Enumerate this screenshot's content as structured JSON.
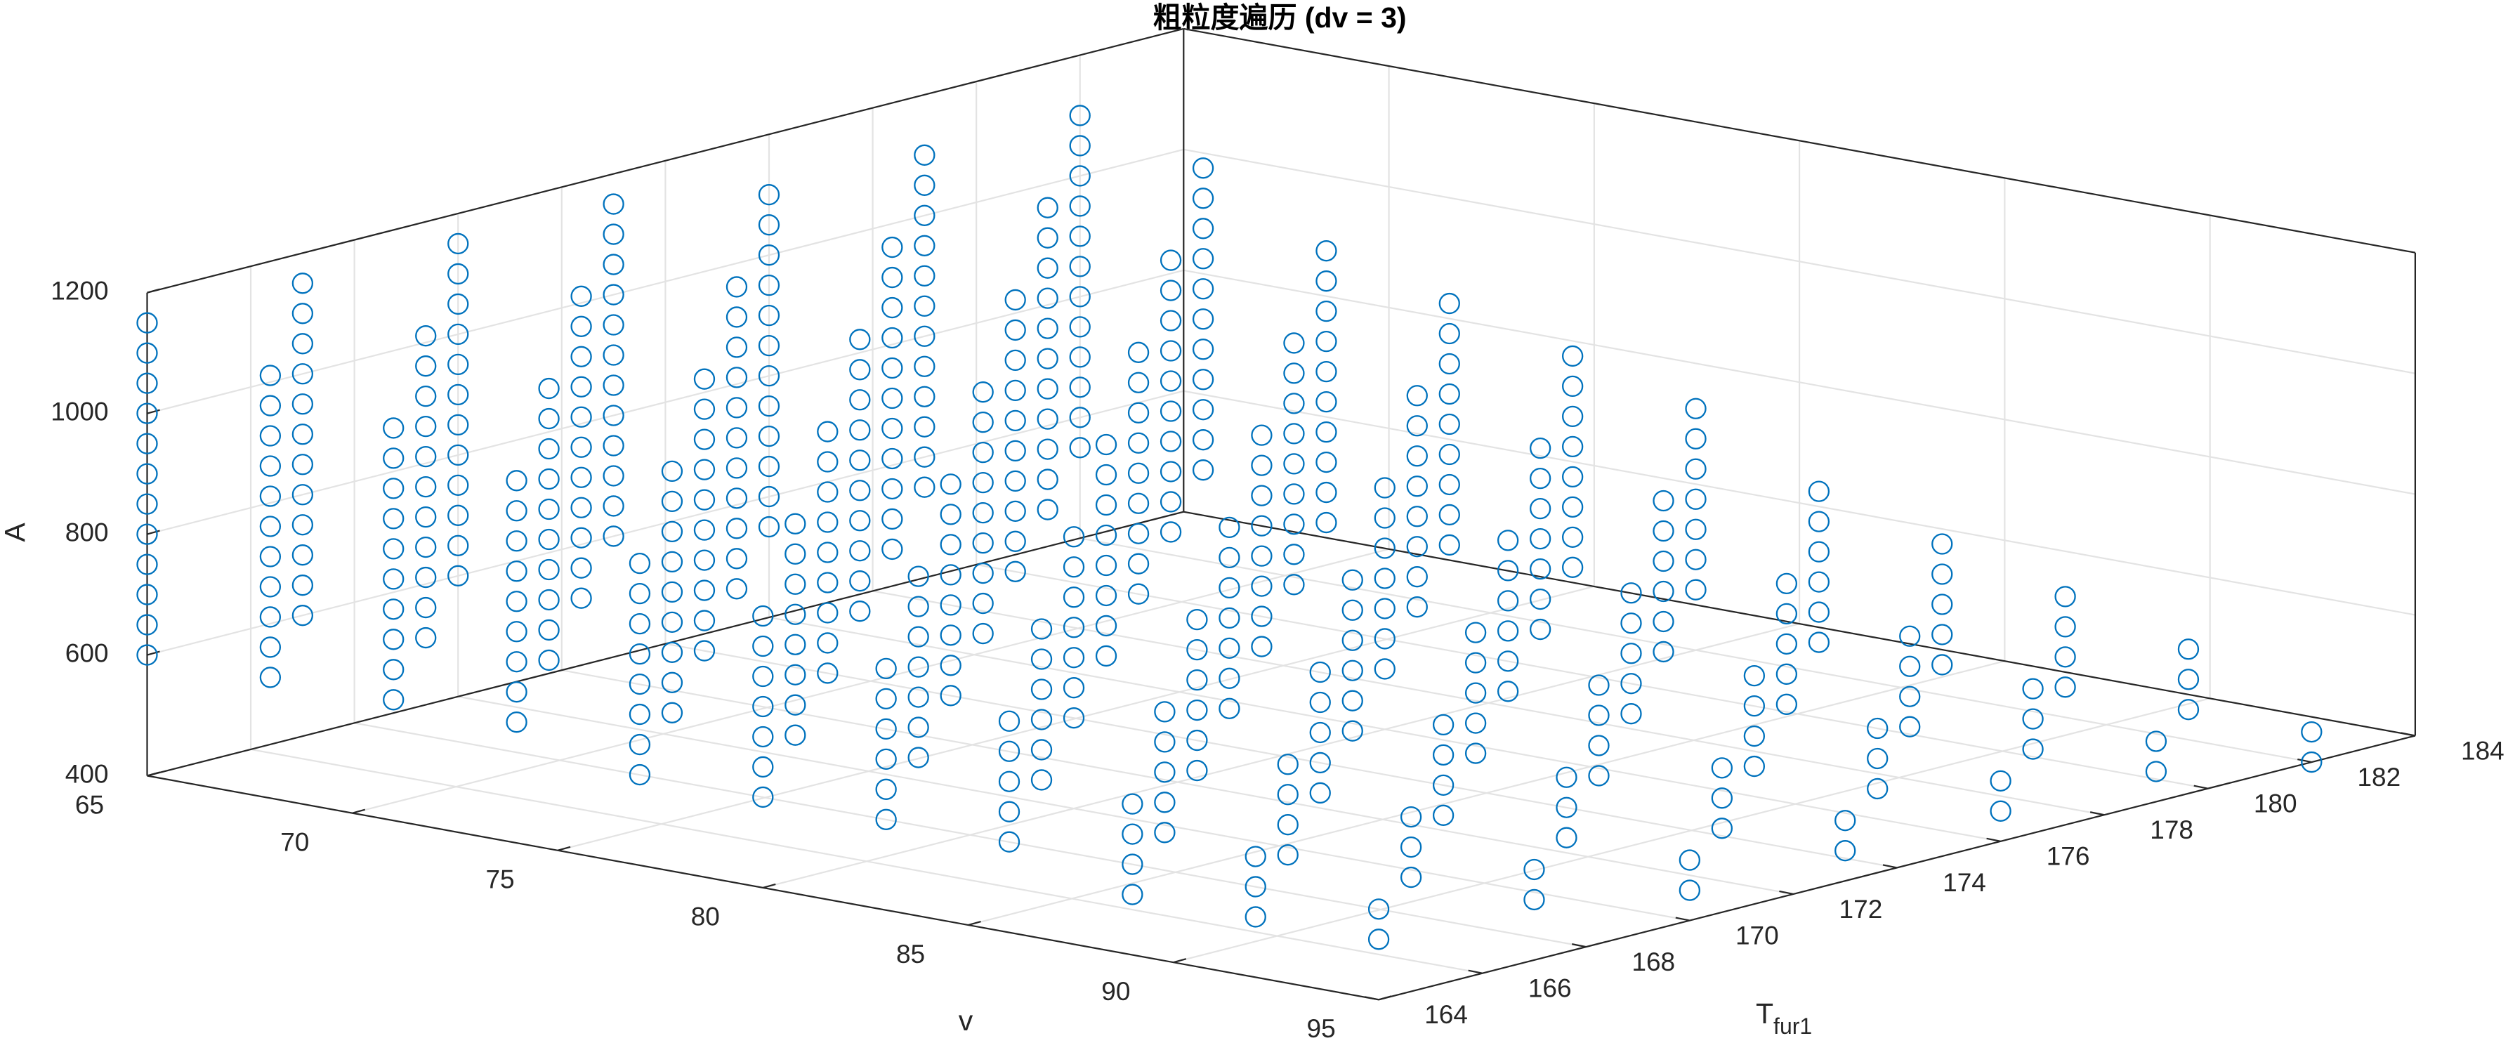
{
  "chart_data": {
    "type": "scatter3d",
    "title": "粗粒度遍历 (dv = 3)",
    "xlabel": "v",
    "ylabel": {
      "text": "T",
      "subscript": "fur1"
    },
    "zlabel": "A",
    "color": "#0072bd",
    "grid": true,
    "xlim": [
      65,
      95
    ],
    "ylim": [
      164,
      184
    ],
    "zlim": [
      400,
      1200
    ],
    "xticks": [
      65,
      70,
      75,
      80,
      85,
      90,
      95
    ],
    "yticks": [
      164,
      166,
      168,
      170,
      172,
      174,
      176,
      178,
      180,
      182,
      184
    ],
    "zticks": [
      400,
      600,
      800,
      1000,
      1200
    ],
    "columns": [
      {
        "x": 65,
        "y": 164,
        "z": [
          600,
          650,
          700,
          750,
          800,
          850,
          900,
          950,
          1000,
          1050,
          1100,
          1150
        ]
      },
      {
        "x": 65,
        "y": 167,
        "z": [
          600,
          650,
          700,
          750,
          800,
          850,
          900,
          950,
          1000,
          1050,
          1100,
          1150
        ]
      },
      {
        "x": 65,
        "y": 170,
        "z": [
          600,
          650,
          700,
          750,
          800,
          850,
          900,
          950,
          1000,
          1050,
          1100,
          1150
        ]
      },
      {
        "x": 65,
        "y": 173,
        "z": [
          600,
          650,
          700,
          750,
          800,
          850,
          900,
          950,
          1000,
          1050,
          1100,
          1150
        ]
      },
      {
        "x": 65,
        "y": 176,
        "z": [
          550,
          600,
          650,
          700,
          750,
          800,
          850,
          900,
          950,
          1000,
          1050,
          1100
        ]
      },
      {
        "x": 65,
        "y": 179,
        "z": [
          550,
          600,
          650,
          700,
          750,
          800,
          850,
          900,
          950,
          1000,
          1050,
          1100
        ]
      },
      {
        "x": 65,
        "y": 182,
        "z": [
          550,
          600,
          650,
          700,
          750,
          800,
          850,
          900,
          950,
          1000,
          1050,
          1100
        ]
      },
      {
        "x": 68,
        "y": 164,
        "z": [
          600,
          650,
          700,
          750,
          800,
          850,
          900,
          950,
          1000,
          1050,
          1100
        ]
      },
      {
        "x": 68,
        "y": 167,
        "z": [
          600,
          650,
          700,
          750,
          800,
          850,
          900,
          950,
          1000,
          1050,
          1100
        ]
      },
      {
        "x": 68,
        "y": 170,
        "z": [
          600,
          650,
          700,
          750,
          800,
          850,
          900,
          950,
          1000,
          1050,
          1100
        ]
      },
      {
        "x": 68,
        "y": 173,
        "z": [
          550,
          600,
          650,
          700,
          750,
          800,
          850,
          900,
          950,
          1000,
          1050
        ]
      },
      {
        "x": 68,
        "y": 176,
        "z": [
          550,
          600,
          650,
          700,
          750,
          800,
          850,
          900,
          950,
          1000,
          1050
        ]
      },
      {
        "x": 68,
        "y": 179,
        "z": [
          550,
          600,
          650,
          700,
          750,
          800,
          850,
          900,
          950,
          1000,
          1050
        ]
      },
      {
        "x": 68,
        "y": 182,
        "z": [
          550,
          600,
          650,
          700,
          750,
          800,
          850,
          900,
          950,
          1000,
          1050
        ]
      },
      {
        "x": 71,
        "y": 164,
        "z": [
          600,
          650,
          700,
          750,
          800,
          850,
          900,
          950,
          1000,
          1050
        ]
      },
      {
        "x": 71,
        "y": 167,
        "z": [
          600,
          650,
          700,
          750,
          800,
          850,
          900,
          950,
          1000,
          1050
        ]
      },
      {
        "x": 71,
        "y": 170,
        "z": [
          550,
          600,
          650,
          700,
          750,
          800,
          850,
          900,
          950,
          1000
        ]
      },
      {
        "x": 71,
        "y": 173,
        "z": [
          550,
          600,
          650,
          700,
          750,
          800,
          850,
          900,
          950,
          1000
        ]
      },
      {
        "x": 71,
        "y": 176,
        "z": [
          550,
          600,
          650,
          700,
          750,
          800,
          850,
          900,
          950,
          1000
        ]
      },
      {
        "x": 71,
        "y": 179,
        "z": [
          550,
          600,
          650,
          700,
          750,
          800,
          850,
          900,
          950,
          1000
        ]
      },
      {
        "x": 71,
        "y": 182,
        "z": [
          500,
          550,
          600,
          650,
          700,
          750,
          800,
          850,
          900,
          950
        ]
      },
      {
        "x": 74,
        "y": 164,
        "z": [
          600,
          650,
          700,
          750,
          800,
          850,
          900,
          950,
          1000
        ]
      },
      {
        "x": 74,
        "y": 167,
        "z": [
          550,
          600,
          650,
          700,
          750,
          800,
          850,
          900,
          950
        ]
      },
      {
        "x": 74,
        "y": 170,
        "z": [
          550,
          600,
          650,
          700,
          750,
          800,
          850,
          900,
          950
        ]
      },
      {
        "x": 74,
        "y": 173,
        "z": [
          550,
          600,
          650,
          700,
          750,
          800,
          850,
          900,
          950
        ]
      },
      {
        "x": 74,
        "y": 176,
        "z": [
          550,
          600,
          650,
          700,
          750,
          800,
          850,
          900,
          950
        ]
      },
      {
        "x": 74,
        "y": 179,
        "z": [
          500,
          550,
          600,
          650,
          700,
          750,
          800,
          850,
          900
        ]
      },
      {
        "x": 74,
        "y": 182,
        "z": [
          500,
          550,
          600,
          650,
          700,
          750,
          800,
          850,
          900
        ]
      },
      {
        "x": 77,
        "y": 164,
        "z": [
          550,
          600,
          650,
          700,
          750,
          800,
          850,
          900
        ]
      },
      {
        "x": 77,
        "y": 167,
        "z": [
          550,
          600,
          650,
          700,
          750,
          800,
          850,
          900
        ]
      },
      {
        "x": 77,
        "y": 170,
        "z": [
          550,
          600,
          650,
          700,
          750,
          800,
          850,
          900
        ]
      },
      {
        "x": 77,
        "y": 173,
        "z": [
          550,
          600,
          650,
          700,
          750,
          800,
          850,
          900
        ]
      },
      {
        "x": 77,
        "y": 176,
        "z": [
          500,
          550,
          600,
          650,
          700,
          750,
          800,
          850
        ]
      },
      {
        "x": 77,
        "y": 179,
        "z": [
          500,
          550,
          600,
          650,
          700,
          750,
          800,
          850
        ]
      },
      {
        "x": 77,
        "y": 182,
        "z": [
          500,
          550,
          600,
          650,
          700,
          750,
          800,
          850
        ]
      },
      {
        "x": 80,
        "y": 164,
        "z": [
          550,
          600,
          650,
          700,
          750,
          800,
          850
        ]
      },
      {
        "x": 80,
        "y": 167,
        "z": [
          550,
          600,
          650,
          700,
          750,
          800,
          850
        ]
      },
      {
        "x": 80,
        "y": 170,
        "z": [
          550,
          600,
          650,
          700,
          750,
          800,
          850
        ]
      },
      {
        "x": 80,
        "y": 173,
        "z": [
          500,
          550,
          600,
          650,
          700,
          750,
          800
        ]
      },
      {
        "x": 80,
        "y": 176,
        "z": [
          500,
          550,
          600,
          650,
          700,
          750,
          800
        ]
      },
      {
        "x": 80,
        "y": 179,
        "z": [
          500,
          550,
          600,
          650,
          700,
          750,
          800
        ]
      },
      {
        "x": 80,
        "y": 182,
        "z": [
          500,
          550,
          600,
          650,
          700,
          750,
          800
        ]
      },
      {
        "x": 83,
        "y": 164,
        "z": [
          550,
          600,
          650,
          700,
          750,
          800
        ]
      },
      {
        "x": 83,
        "y": 167,
        "z": [
          550,
          600,
          650,
          700,
          750,
          800
        ]
      },
      {
        "x": 83,
        "y": 170,
        "z": [
          500,
          550,
          600,
          650,
          700,
          750
        ]
      },
      {
        "x": 83,
        "y": 173,
        "z": [
          500,
          550,
          600,
          650,
          700,
          750
        ]
      },
      {
        "x": 83,
        "y": 176,
        "z": [
          500,
          550,
          600,
          650,
          700,
          750
        ]
      },
      {
        "x": 83,
        "y": 179,
        "z": [
          500,
          550,
          600,
          650,
          700,
          750
        ]
      },
      {
        "x": 83,
        "y": 182,
        "z": [
          450,
          500,
          550,
          600,
          650,
          700
        ]
      },
      {
        "x": 86,
        "y": 164,
        "z": [
          550,
          600,
          650,
          700,
          750
        ]
      },
      {
        "x": 86,
        "y": 167,
        "z": [
          500,
          550,
          600,
          650,
          700
        ]
      },
      {
        "x": 86,
        "y": 170,
        "z": [
          500,
          550,
          600,
          650,
          700
        ]
      },
      {
        "x": 86,
        "y": 173,
        "z": [
          500,
          550,
          600,
          650,
          700
        ]
      },
      {
        "x": 86,
        "y": 176,
        "z": [
          500,
          550,
          600,
          650,
          700
        ]
      },
      {
        "x": 86,
        "y": 179,
        "z": [
          450,
          500,
          550,
          600,
          650
        ]
      },
      {
        "x": 86,
        "y": 182,
        "z": [
          450,
          500,
          550,
          600,
          650
        ]
      },
      {
        "x": 89,
        "y": 164,
        "z": [
          500,
          550,
          600,
          650
        ]
      },
      {
        "x": 89,
        "y": 167,
        "z": [
          500,
          550,
          600,
          650
        ]
      },
      {
        "x": 89,
        "y": 170,
        "z": [
          500,
          550,
          600,
          650
        ]
      },
      {
        "x": 89,
        "y": 173,
        "z": [
          500,
          550,
          600,
          650
        ]
      },
      {
        "x": 89,
        "y": 176,
        "z": [
          450,
          500,
          550,
          600
        ]
      },
      {
        "x": 89,
        "y": 179,
        "z": [
          450,
          500,
          550,
          600
        ]
      },
      {
        "x": 89,
        "y": 182,
        "z": [
          450,
          500,
          550,
          600
        ]
      },
      {
        "x": 92,
        "y": 164,
        "z": [
          500,
          550,
          600
        ]
      },
      {
        "x": 92,
        "y": 167,
        "z": [
          500,
          550,
          600
        ]
      },
      {
        "x": 92,
        "y": 170,
        "z": [
          500,
          550,
          600
        ]
      },
      {
        "x": 92,
        "y": 173,
        "z": [
          450,
          500,
          550
        ]
      },
      {
        "x": 92,
        "y": 176,
        "z": [
          450,
          500,
          550
        ]
      },
      {
        "x": 92,
        "y": 179,
        "z": [
          450,
          500,
          550
        ]
      },
      {
        "x": 92,
        "y": 182,
        "z": [
          450,
          500,
          550
        ]
      },
      {
        "x": 95,
        "y": 164,
        "z": [
          500,
          550
        ]
      },
      {
        "x": 95,
        "y": 167,
        "z": [
          500,
          550
        ]
      },
      {
        "x": 95,
        "y": 170,
        "z": [
          450,
          500
        ]
      },
      {
        "x": 95,
        "y": 173,
        "z": [
          450,
          500
        ]
      },
      {
        "x": 95,
        "y": 176,
        "z": [
          450,
          500
        ]
      },
      {
        "x": 95,
        "y": 179,
        "z": [
          450,
          500
        ]
      },
      {
        "x": 95,
        "y": 182,
        "z": [
          400,
          450
        ]
      }
    ]
  }
}
